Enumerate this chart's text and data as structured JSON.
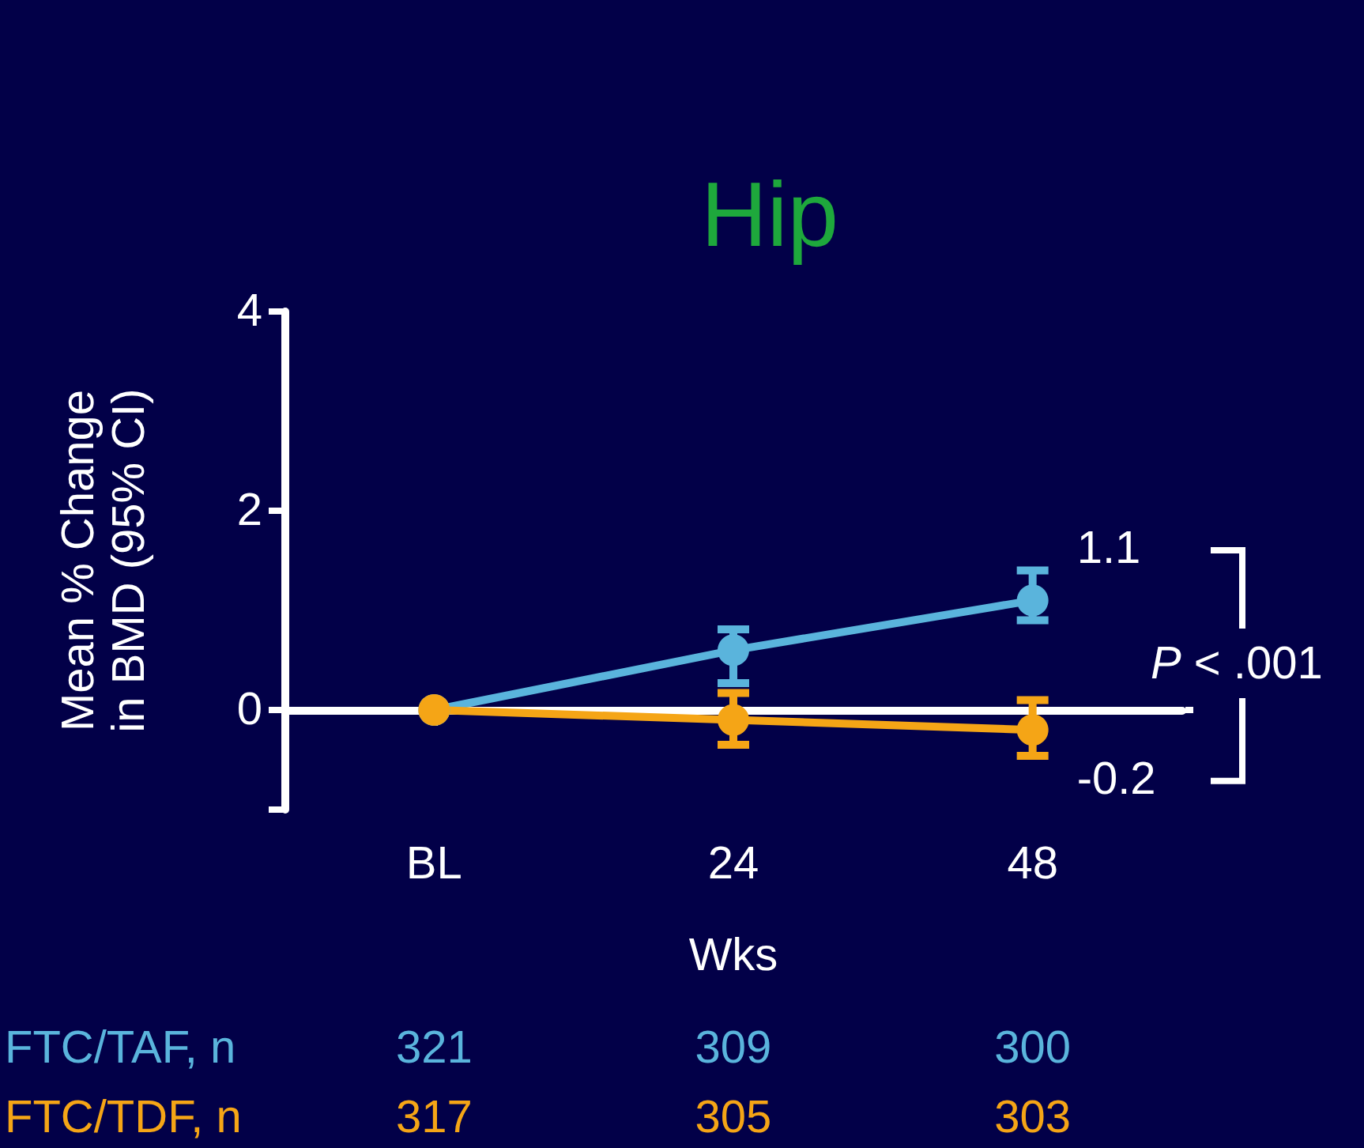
{
  "chart_data": {
    "type": "line",
    "title": "Hip",
    "xlabel": "Wks",
    "ylabel": "Mean % Change\nin BMD (95% CI)",
    "categories": [
      "BL",
      "24",
      "48"
    ],
    "series": [
      {
        "color": "#5ab4dc",
        "values": [
          0,
          0.6,
          1.1
        ],
        "errors": [
          null,
          [
            0.27,
            0.81
          ],
          [
            0.9,
            1.4
          ]
        ]
      },
      {
        "color": "#f5a516",
        "values": [
          0,
          -0.1,
          -0.2
        ],
        "errors": [
          null,
          [
            -0.35,
            0.17
          ],
          [
            -0.46,
            0.1
          ]
        ]
      }
    ],
    "ylim": [
      -1,
      4
    ],
    "yticks": [
      {
        "value": -1,
        "label": null
      },
      0,
      2,
      4
    ],
    "ref_lines": [
      {
        "axis": "y",
        "value": 0,
        "label": null,
        "color": "#ffffff",
        "line_style": "dotted"
      }
    ],
    "annotations": [
      {
        "text": "1.1",
        "x": "48",
        "y": 1.1
      },
      {
        "text": "-0.2",
        "x": "48",
        "y": -0.2
      },
      "P < .001",
      "FTC/TAF, n",
      "321",
      "309",
      "300",
      "FTC/TDF, n",
      "317",
      "305",
      "303"
    ],
    "marker": "circle",
    "line_style": "solid",
    "grid": false
  }
}
